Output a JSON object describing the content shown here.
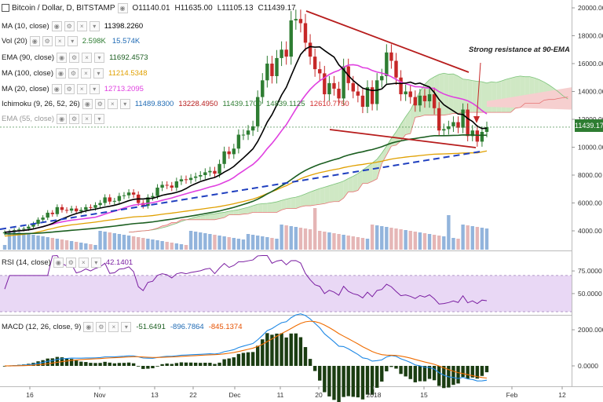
{
  "header": {
    "title": "Bitcoin / Dollar, D, BITSTAMP",
    "open": "O11140.01",
    "high": "H11635.00",
    "low": "L11105.13",
    "close": "C11439.17"
  },
  "indicators": [
    {
      "label": "MA (10, close)",
      "value": "11398.2260",
      "color": "#000000"
    },
    {
      "label": "Vol (20)",
      "value": "2.598K",
      "value2": "15.574K",
      "color": "#2e7d32",
      "color2": "#1e6ab4"
    },
    {
      "label": "EMA (90, close)",
      "value": "11692.4573",
      "color": "#1b5e20"
    },
    {
      "label": "MA (100, close)",
      "value": "11214.5348",
      "color": "#e0a000"
    },
    {
      "label": "MA (20, close)",
      "value": "12713.2095",
      "color": "#e040e0"
    },
    {
      "label": "Ichimoku (9, 26, 52, 26)",
      "values": [
        "11489.8300",
        "13228.4950",
        "11439.1700",
        "14839.1125",
        "12610.7750"
      ],
      "colors": [
        "#1e6ab4",
        "#b71c1c",
        "#2e7d32",
        "#2e7d32",
        "#d32f2f"
      ]
    },
    {
      "label": "EMA (55, close)",
      "value": "",
      "color": "#999999"
    }
  ],
  "annotation": "Strong resistance at 90-EMA",
  "current_price_label": "11439.17",
  "price_axis": [
    "20000.00",
    "18000.00",
    "16000.00",
    "14000.00",
    "12000.00",
    "10000.00",
    "8000.00",
    "6000.00",
    "4000.00"
  ],
  "rsi_panel": {
    "label": "RSI (14, close)",
    "value": "42.1401",
    "axis": [
      "75.0000",
      "50.0000"
    ],
    "color": "#7b1fa2"
  },
  "macd_panel": {
    "label": "MACD (12, 26, close, 9)",
    "values": [
      "-51.6491",
      "-896.7864",
      "-845.1374"
    ],
    "colors": [
      "#1b5e20",
      "#1e6ab4",
      "#e65100"
    ],
    "axis": [
      "2000.0000",
      "0.0000"
    ]
  },
  "time_axis": [
    "16",
    "Nov",
    "13",
    "22",
    "Dec",
    "11",
    "20",
    "2018",
    "15",
    "Feb",
    "12"
  ],
  "colors": {
    "up": "#2e7d32",
    "down": "#c62828",
    "ma10": "#000000",
    "ma20": "#e040e0",
    "ema90": "#1b5e20",
    "ma100": "#e0a000",
    "trend_blue": "#1f3fbf",
    "wedge": "#b71c1c",
    "cloud_green": "#cfe8c4",
    "cloud_red": "#f6cfcf",
    "rsi_band": "#e9d8f5",
    "macd_line": "#1e88e5",
    "signal_line": "#ef6c00",
    "hist": "#1b3d12",
    "volume": "#7fa7d6",
    "volume_red": "#e0a9a9"
  },
  "chart_data": {
    "type": "candlestick",
    "title": "Bitcoin / Dollar, D, BITSTAMP",
    "x_start_label": "16",
    "ylim": [
      3000,
      20500
    ],
    "close": [
      3900,
      3950,
      4050,
      4100,
      4150,
      4300,
      4500,
      4800,
      4950,
      5300,
      5200,
      5700,
      5500,
      5450,
      5600,
      5400,
      5500,
      5700,
      5650,
      5850,
      6000,
      6400,
      6100,
      6150,
      6500,
      6550,
      6750,
      6600,
      6000,
      5800,
      6400,
      6500,
      7100,
      7300,
      7250,
      7100,
      7550,
      7700,
      7650,
      7800,
      7900,
      8000,
      8200,
      8300,
      8100,
      8800,
      9700,
      9500,
      9900,
      10900,
      10900,
      11200,
      11500,
      13600,
      14800,
      16000,
      15100,
      16400,
      17000,
      16500,
      19100,
      19200,
      18900,
      17500,
      16500,
      15600,
      15300,
      13800,
      14600,
      14200,
      13500,
      15800,
      14600,
      14000,
      13700,
      12900,
      14300,
      13100,
      14800,
      15100,
      16800,
      16200,
      15000,
      13800,
      14000,
      13600,
      13000,
      13700,
      13300,
      13800,
      12800,
      11200,
      11300,
      11500,
      11800,
      11400,
      12700,
      10800,
      11200,
      10400,
      11100,
      11440
    ],
    "series": [
      {
        "name": "MA (10, close)",
        "last": 11398.226
      },
      {
        "name": "MA (20, close)",
        "last": 12713.2095
      },
      {
        "name": "EMA (90, close)",
        "last": 11692.4573
      },
      {
        "name": "MA (100, close)",
        "last": 11214.5348
      }
    ],
    "ohlc_last": {
      "open": 11140.01,
      "high": 11635.0,
      "low": 11105.13,
      "close": 11439.17
    },
    "rsi_last": 42.1401,
    "macd_last": {
      "hist": -51.6491,
      "macd": -896.7864,
      "signal": -845.1374
    }
  }
}
